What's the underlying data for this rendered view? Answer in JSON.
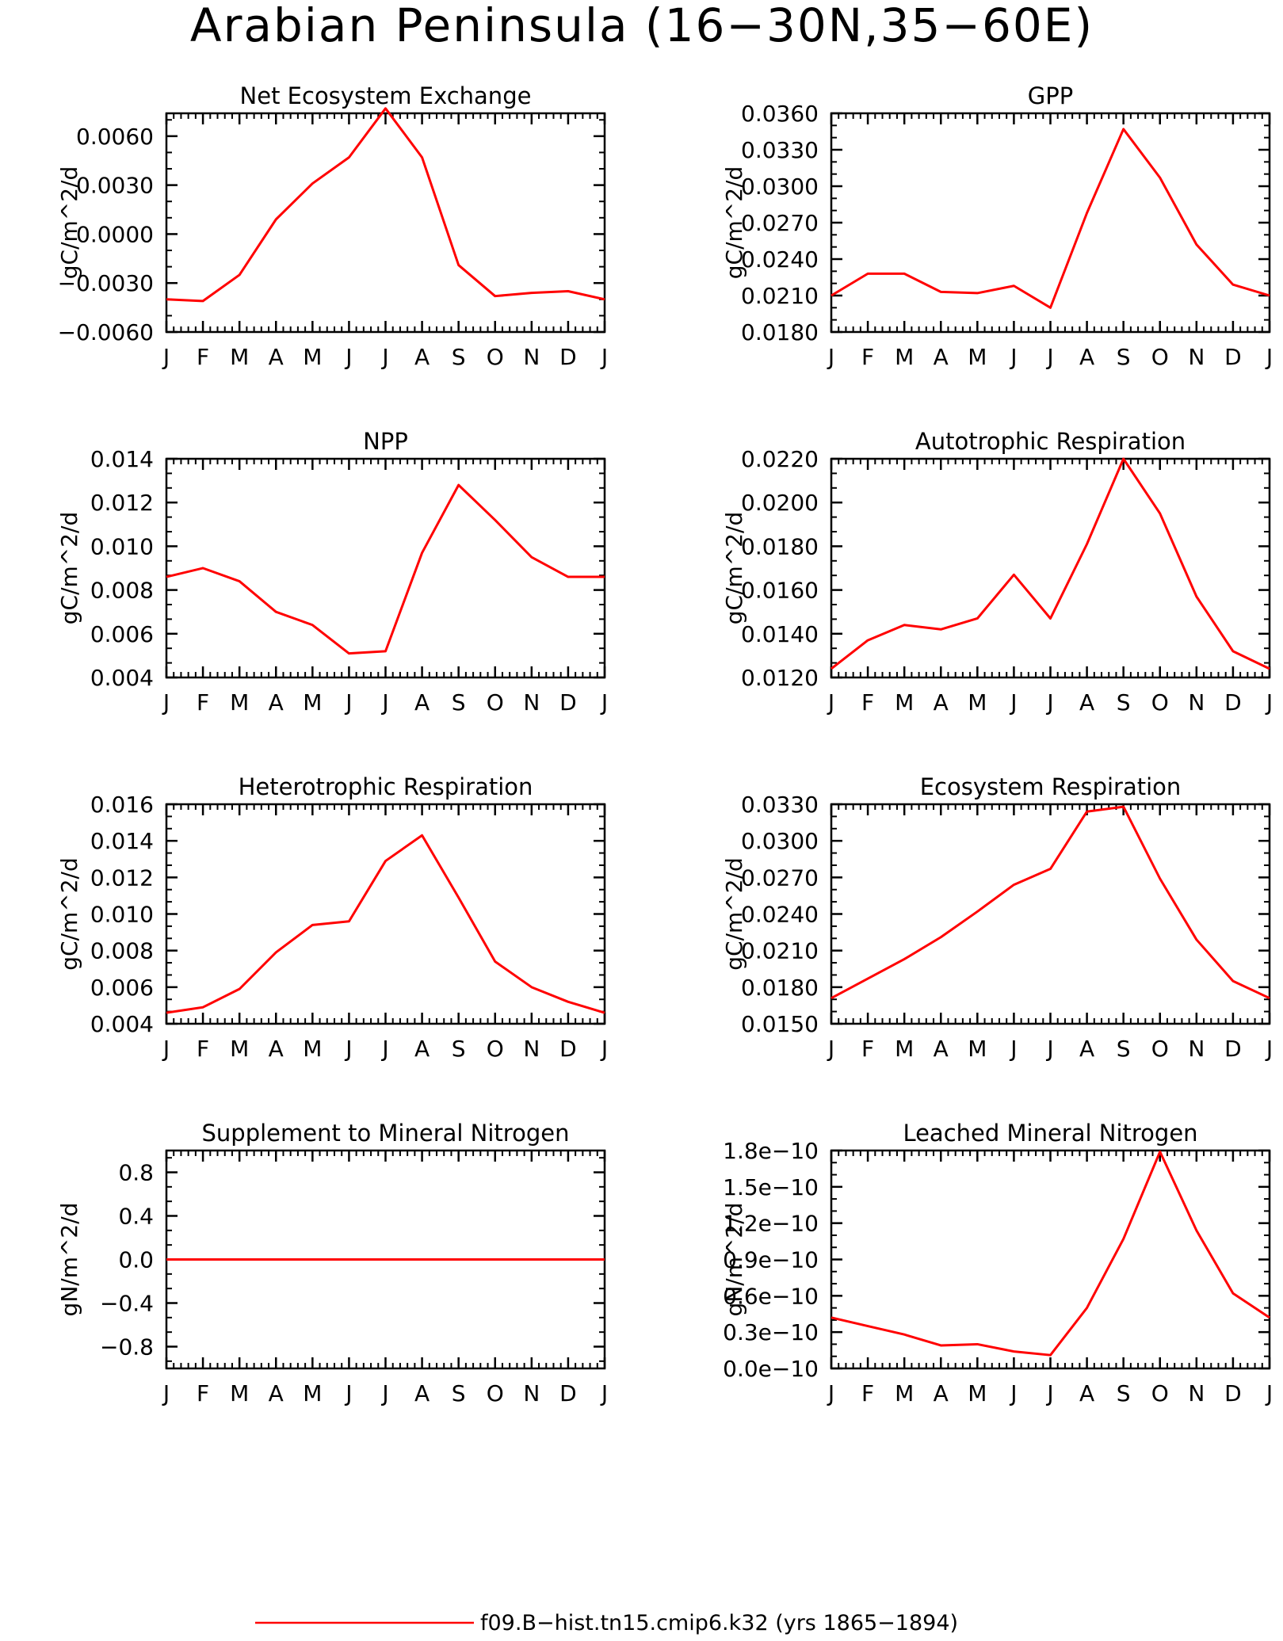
{
  "figure": {
    "title": "Arabian Peninsula (16−30N,35−60E)",
    "legend": {
      "label": "f09.B−hist.tn15.cmip6.k32 (yrs 1865−1894)",
      "color": "#ff0000"
    }
  },
  "chart_data": [
    {
      "type": "line",
      "title": "Net Ecosystem Exchange",
      "ylabel": "gC/m^2/d",
      "xlabel": "",
      "categories": [
        "J",
        "F",
        "M",
        "A",
        "M",
        "J",
        "J",
        "A",
        "S",
        "O",
        "N",
        "D",
        "J"
      ],
      "ylim": [
        -0.006,
        0.0074
      ],
      "yticks": [
        -0.006,
        -0.003,
        0.0,
        0.003,
        0.006
      ],
      "ytick_labels": [
        "−0.0060",
        "−0.0030",
        "0.0000",
        "0.0030",
        "0.0060"
      ],
      "grid": false,
      "series": [
        {
          "values": [
            -0.004,
            -0.0041,
            -0.0025,
            0.0009,
            0.0031,
            0.0047,
            0.0077,
            0.0047,
            -0.0019,
            -0.0038,
            -0.0036,
            -0.0035,
            -0.004
          ],
          "color": "#ff0000"
        }
      ]
    },
    {
      "type": "line",
      "title": "GPP",
      "ylabel": "gC/m^2/d",
      "xlabel": "",
      "categories": [
        "J",
        "F",
        "M",
        "A",
        "M",
        "J",
        "J",
        "A",
        "S",
        "O",
        "N",
        "D",
        "J"
      ],
      "ylim": [
        0.018,
        0.036
      ],
      "yticks": [
        0.018,
        0.021,
        0.024,
        0.027,
        0.03,
        0.033,
        0.036
      ],
      "ytick_labels": [
        "0.0180",
        "0.0210",
        "0.0240",
        "0.0270",
        "0.0300",
        "0.0330",
        "0.0360"
      ],
      "grid": false,
      "series": [
        {
          "values": [
            0.021,
            0.0228,
            0.0228,
            0.0213,
            0.0212,
            0.0218,
            0.02,
            0.0278,
            0.0347,
            0.0307,
            0.0252,
            0.0219,
            0.021
          ],
          "color": "#ff0000"
        }
      ]
    },
    {
      "type": "line",
      "title": "NPP",
      "ylabel": "gC/m^2/d",
      "xlabel": "",
      "categories": [
        "J",
        "F",
        "M",
        "A",
        "M",
        "J",
        "J",
        "A",
        "S",
        "O",
        "N",
        "D",
        "J"
      ],
      "ylim": [
        0.004,
        0.014
      ],
      "yticks": [
        0.004,
        0.006,
        0.008,
        0.01,
        0.012,
        0.014
      ],
      "ytick_labels": [
        "0.004",
        "0.006",
        "0.008",
        "0.010",
        "0.012",
        "0.014"
      ],
      "grid": false,
      "series": [
        {
          "values": [
            0.0086,
            0.009,
            0.0084,
            0.007,
            0.0064,
            0.0051,
            0.0052,
            0.0097,
            0.0128,
            0.0112,
            0.0095,
            0.0086,
            0.0086
          ],
          "color": "#ff0000"
        }
      ]
    },
    {
      "type": "line",
      "title": "Autotrophic Respiration",
      "ylabel": "gC/m^2/d",
      "xlabel": "",
      "categories": [
        "J",
        "F",
        "M",
        "A",
        "M",
        "J",
        "J",
        "A",
        "S",
        "O",
        "N",
        "D",
        "J"
      ],
      "ylim": [
        0.012,
        0.022
      ],
      "yticks": [
        0.012,
        0.014,
        0.016,
        0.018,
        0.02,
        0.022
      ],
      "ytick_labels": [
        "0.0120",
        "0.0140",
        "0.0160",
        "0.0180",
        "0.0200",
        "0.0220"
      ],
      "grid": false,
      "series": [
        {
          "values": [
            0.0124,
            0.0137,
            0.0144,
            0.0142,
            0.0147,
            0.0167,
            0.0147,
            0.0181,
            0.022,
            0.0195,
            0.0157,
            0.0132,
            0.0124
          ],
          "color": "#ff0000"
        }
      ]
    },
    {
      "type": "line",
      "title": "Heterotrophic Respiration",
      "ylabel": "gC/m^2/d",
      "xlabel": "",
      "categories": [
        "J",
        "F",
        "M",
        "A",
        "M",
        "J",
        "J",
        "A",
        "S",
        "O",
        "N",
        "D",
        "J"
      ],
      "ylim": [
        0.004,
        0.016
      ],
      "yticks": [
        0.004,
        0.006,
        0.008,
        0.01,
        0.012,
        0.014,
        0.016
      ],
      "ytick_labels": [
        "0.004",
        "0.006",
        "0.008",
        "0.010",
        "0.012",
        "0.014",
        "0.016"
      ],
      "grid": false,
      "series": [
        {
          "values": [
            0.0046,
            0.0049,
            0.0059,
            0.0079,
            0.0094,
            0.0096,
            0.0129,
            0.0143,
            0.0109,
            0.0074,
            0.006,
            0.0052,
            0.0046
          ],
          "color": "#ff0000"
        }
      ]
    },
    {
      "type": "line",
      "title": "Ecosystem Respiration",
      "ylabel": "gC/m^2/d",
      "xlabel": "",
      "categories": [
        "J",
        "F",
        "M",
        "A",
        "M",
        "J",
        "J",
        "A",
        "S",
        "O",
        "N",
        "D",
        "J"
      ],
      "ylim": [
        0.015,
        0.033
      ],
      "yticks": [
        0.015,
        0.018,
        0.021,
        0.024,
        0.027,
        0.03,
        0.033
      ],
      "ytick_labels": [
        "0.0150",
        "0.0180",
        "0.0210",
        "0.0240",
        "0.0270",
        "0.0300",
        "0.0330"
      ],
      "grid": false,
      "series": [
        {
          "values": [
            0.0171,
            0.0187,
            0.0203,
            0.0221,
            0.0242,
            0.0264,
            0.0277,
            0.0324,
            0.0328,
            0.0269,
            0.0219,
            0.0185,
            0.0171
          ],
          "color": "#ff0000"
        }
      ]
    },
    {
      "type": "line",
      "title": "Supplement to Mineral Nitrogen",
      "ylabel": "gN/m^2/d",
      "xlabel": "",
      "categories": [
        "J",
        "F",
        "M",
        "A",
        "M",
        "J",
        "J",
        "A",
        "S",
        "O",
        "N",
        "D",
        "J"
      ],
      "ylim": [
        -1.0,
        1.0
      ],
      "yticks": [
        -0.8,
        -0.4,
        0.0,
        0.4,
        0.8
      ],
      "ytick_labels": [
        "−0.8",
        "−0.4",
        "0.0",
        "0.4",
        "0.8"
      ],
      "grid": false,
      "series": [
        {
          "values": [
            0,
            0,
            0,
            0,
            0,
            0,
            0,
            0,
            0,
            0,
            0,
            0,
            0
          ],
          "color": "#ff0000"
        }
      ]
    },
    {
      "type": "line",
      "title": "Leached Mineral Nitrogen",
      "ylabel": "gN/m^2/d",
      "xlabel": "",
      "categories": [
        "J",
        "F",
        "M",
        "A",
        "M",
        "J",
        "J",
        "A",
        "S",
        "O",
        "N",
        "D",
        "J"
      ],
      "ylim": [
        0,
        1.8e-10
      ],
      "yticks": [
        0,
        3e-11,
        6e-11,
        9e-11,
        1.2e-10,
        1.5e-10,
        1.8e-10
      ],
      "ytick_labels": [
        "0.0e−10",
        "0.3e−10",
        "0.6e−10",
        "0.9e−10",
        "1.2e−10",
        "1.5e−10",
        "1.8e−10"
      ],
      "grid": false,
      "series": [
        {
          "values": [
            4.2e-11,
            3.5e-11,
            2.8e-11,
            1.9e-11,
            2e-11,
            1.4e-11,
            1.1e-11,
            5e-11,
            1.07e-10,
            1.79e-10,
            1.14e-10,
            6.2e-11,
            4.2e-11
          ],
          "color": "#ff0000"
        }
      ]
    }
  ]
}
